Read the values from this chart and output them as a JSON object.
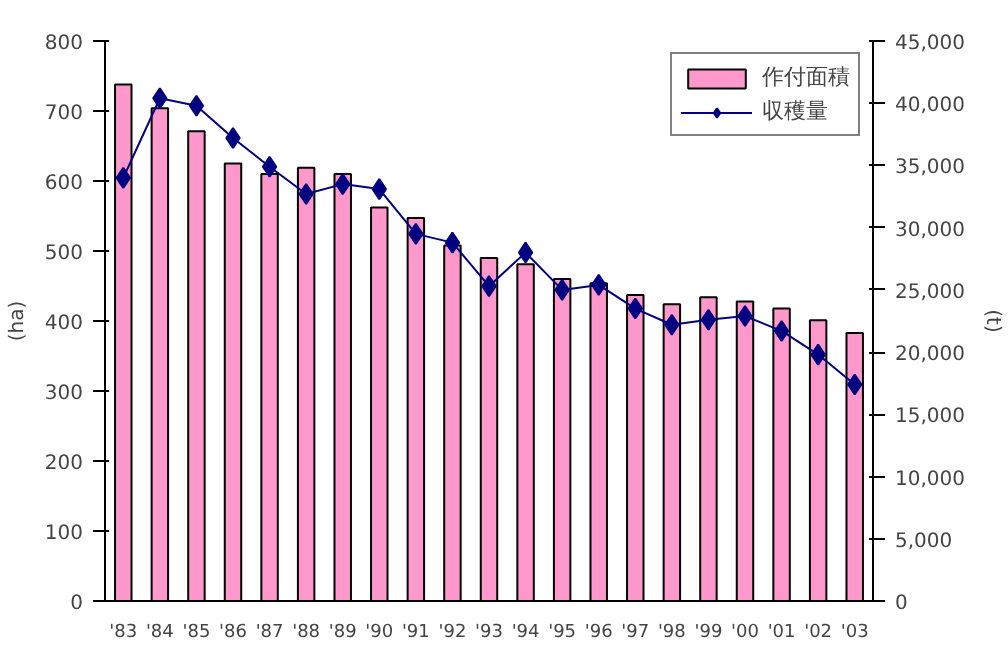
{
  "chart_data": {
    "type": "bar",
    "categories": [
      "'83",
      "'84",
      "'85",
      "'86",
      "'87",
      "'88",
      "'89",
      "'90",
      "'91",
      "'92",
      "'93",
      "'94",
      "'95",
      "'96",
      "'97",
      "'98",
      "'99",
      "'00",
      "'01",
      "'02",
      "'03"
    ],
    "ylabel": "(ha)",
    "y2label": "(t)",
    "series": [
      {
        "name": "作付面積",
        "color": "#ff99cc",
        "values": [
          738,
          704,
          671,
          625,
          610,
          619,
          610,
          562,
          547,
          508,
          490,
          481,
          460,
          454,
          437,
          424,
          434,
          428,
          418,
          401,
          383
        ]
      },
      {
        "name": "収穫量",
        "type": "line",
        "axis": "y2",
        "color": "#000080",
        "marker": "diamond",
        "values": [
          34000,
          40400,
          39800,
          37200,
          34900,
          32700,
          33500,
          33100,
          29500,
          28800,
          25300,
          28000,
          25000,
          25400,
          23500,
          22200,
          22600,
          22900,
          21700,
          19800,
          17400
        ]
      }
    ],
    "ylim": [
      0,
      800
    ],
    "yticks": [
      0,
      100,
      200,
      300,
      400,
      500,
      600,
      700,
      800
    ],
    "y2lim": [
      0,
      45000
    ],
    "y2ticks": [
      {
        "value": 0,
        "label": "0"
      },
      {
        "value": 5000,
        "label": "5,000"
      },
      {
        "value": 10000,
        "label": "10,000"
      },
      {
        "value": 15000,
        "label": "15,000"
      },
      {
        "value": 20000,
        "label": "20,000"
      },
      {
        "value": 25000,
        "label": "25,000"
      },
      {
        "value": 30000,
        "label": "30,000"
      },
      {
        "value": 35000,
        "label": "35,000"
      },
      {
        "value": 40000,
        "label": "40,000"
      },
      {
        "value": 45000,
        "label": "45,000"
      }
    ],
    "grid": false,
    "legend": "top right"
  }
}
